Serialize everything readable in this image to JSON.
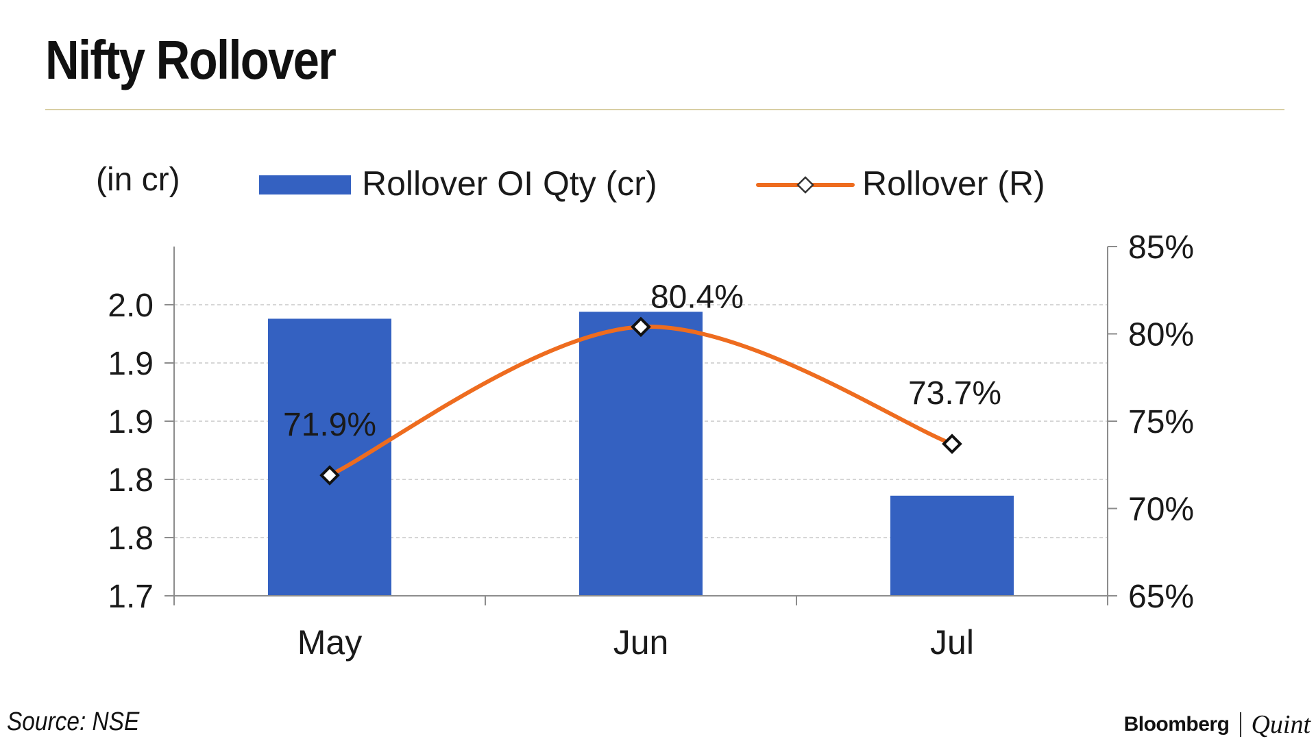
{
  "title": "Nifty Rollover",
  "source": "Source: NSE",
  "brand": {
    "left": "Bloomberg",
    "right": "Quint"
  },
  "colors": {
    "bar": "#3461c1",
    "line": "#ee6c1f",
    "rule": "#d9cfa4",
    "grid": "#c8c8c8",
    "axis": "#8c8c8c",
    "text": "#1a1a1a"
  },
  "chart_data": {
    "type": "bar",
    "categories": [
      "May",
      "Jun",
      "Jul"
    ],
    "unit_label": "(in cr)",
    "y_left": {
      "min": 1.7,
      "max": 2.0,
      "step": 0.05,
      "tick_labels": [
        "1.7",
        "1.8",
        "1.8",
        "1.9",
        "1.9",
        "2.0"
      ]
    },
    "y_right": {
      "min": 65,
      "max": 85,
      "step": 5,
      "tick_labels": [
        "65%",
        "70%",
        "75%",
        "80%",
        "85%"
      ]
    },
    "grid": "horizontal dashed",
    "legend_placement": "top",
    "series": [
      {
        "name": "Rollover OI Qty (cr)",
        "type": "bar",
        "axis": "left",
        "values": [
          1.938,
          1.944,
          1.786
        ]
      },
      {
        "name": "Rollover (R)",
        "type": "line",
        "axis": "right",
        "values": [
          71.9,
          80.4,
          73.7
        ],
        "labels": [
          "71.9%",
          "80.4%",
          "73.7%"
        ]
      }
    ]
  }
}
